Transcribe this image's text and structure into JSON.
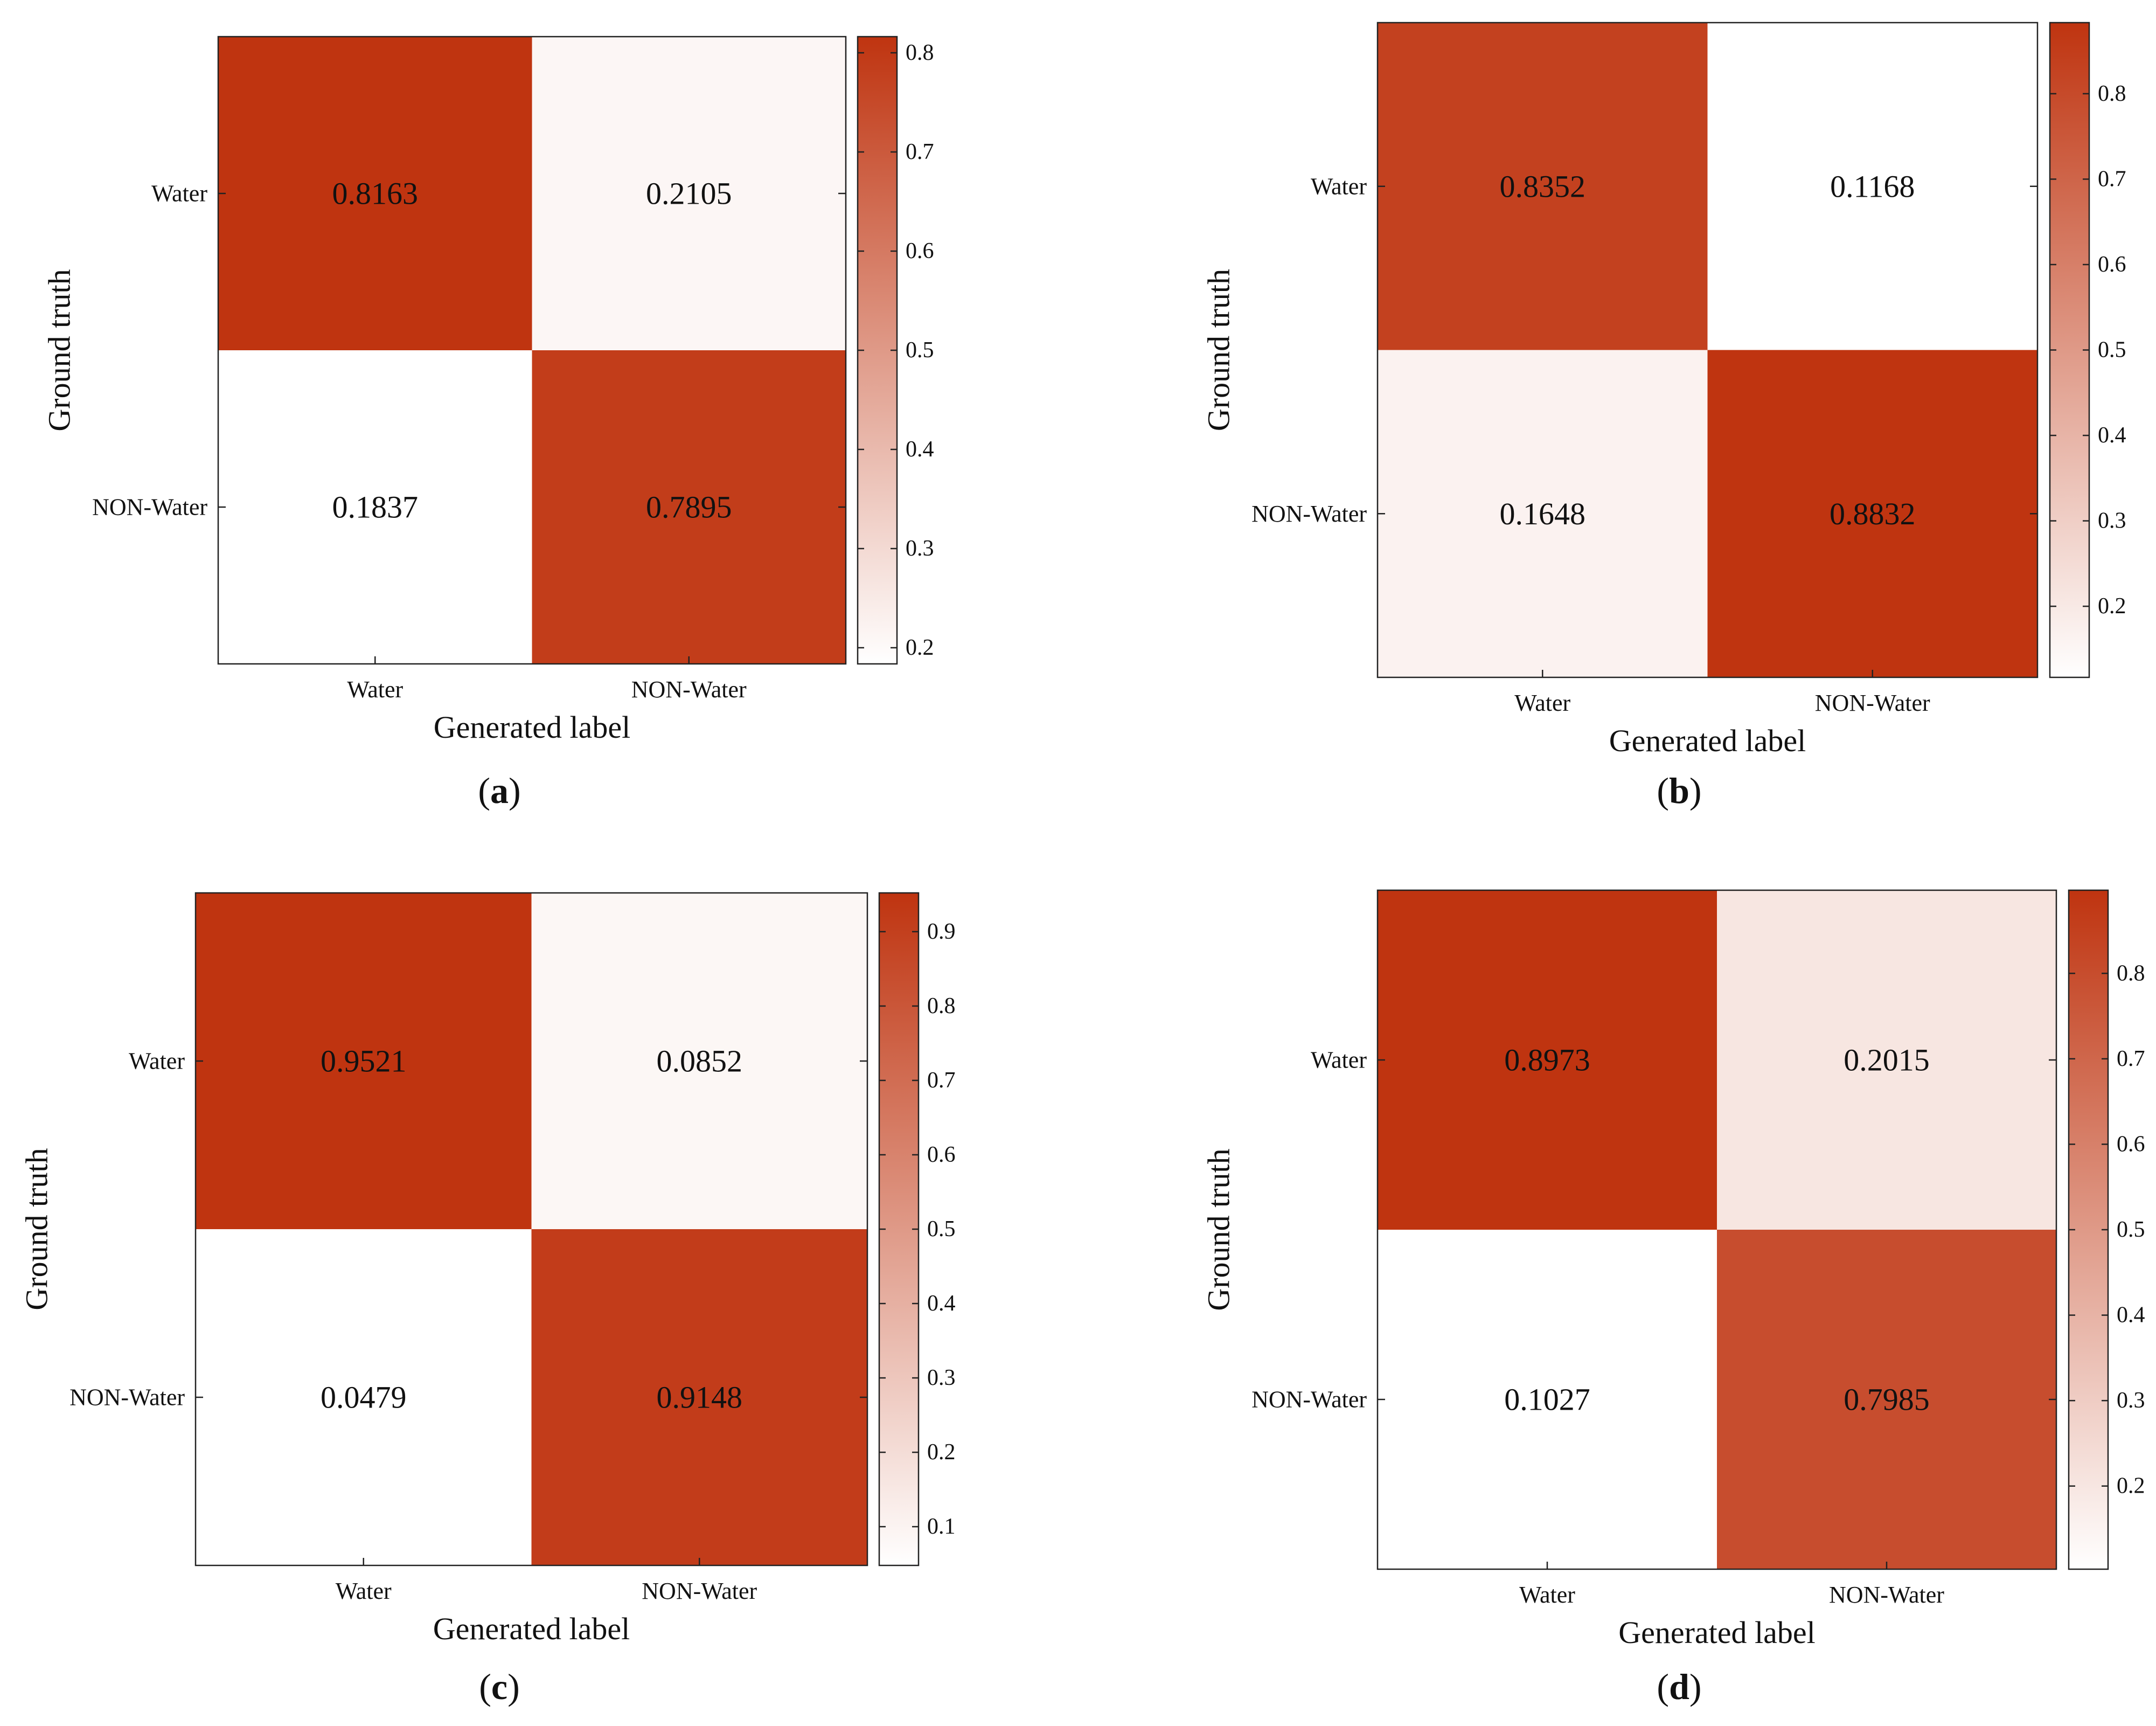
{
  "colors": {
    "low": "#ffffff",
    "high": "#bf3410",
    "text": "#111111",
    "frame": "#222222"
  },
  "chart_data": [
    {
      "panel_label": "(a)",
      "panel_letter": "a",
      "type": "heatmap",
      "title": "",
      "xlabel": "Generated label",
      "ylabel": "Ground truth",
      "x_categories": [
        "Water",
        "NON-Water"
      ],
      "y_categories": [
        "Water",
        "NON-Water"
      ],
      "values": [
        [
          0.8163,
          0.2105
        ],
        [
          0.1837,
          0.7895
        ]
      ],
      "colorbar": {
        "range": [
          0.1837,
          0.8163
        ],
        "ticks": [
          "0.2",
          "0.3",
          "0.4",
          "0.5",
          "0.6",
          "0.7",
          "0.8"
        ]
      }
    },
    {
      "panel_label": "(b)",
      "panel_letter": "b",
      "type": "heatmap",
      "title": "",
      "xlabel": "Generated label",
      "ylabel": "Ground truth",
      "x_categories": [
        "Water",
        "NON-Water"
      ],
      "y_categories": [
        "Water",
        "NON-Water"
      ],
      "values": [
        [
          0.8352,
          0.1168
        ],
        [
          0.1648,
          0.8832
        ]
      ],
      "colorbar": {
        "range": [
          0.1168,
          0.8832
        ],
        "ticks": [
          "0.2",
          "0.3",
          "0.4",
          "0.5",
          "0.6",
          "0.7",
          "0.8"
        ]
      }
    },
    {
      "panel_label": "(c)",
      "panel_letter": "c",
      "type": "heatmap",
      "title": "",
      "xlabel": "Generated label",
      "ylabel": "Ground truth",
      "x_categories": [
        "Water",
        "NON-Water"
      ],
      "y_categories": [
        "Water",
        "NON-Water"
      ],
      "values": [
        [
          0.9521,
          0.0852
        ],
        [
          0.0479,
          0.9148
        ]
      ],
      "colorbar": {
        "range": [
          0.0479,
          0.9521
        ],
        "ticks": [
          "0.1",
          "0.2",
          "0.3",
          "0.4",
          "0.5",
          "0.6",
          "0.7",
          "0.8",
          "0.9"
        ]
      }
    },
    {
      "panel_label": "(d)",
      "panel_letter": "d",
      "type": "heatmap",
      "title": "",
      "xlabel": "Generated label",
      "ylabel": "Ground truth",
      "x_categories": [
        "Water",
        "NON-Water"
      ],
      "y_categories": [
        "Water",
        "NON-Water"
      ],
      "values": [
        [
          0.8973,
          0.2015
        ],
        [
          0.1027,
          0.7985
        ]
      ],
      "colorbar": {
        "range": [
          0.1027,
          0.8973
        ],
        "ticks": [
          "0.2",
          "0.3",
          "0.4",
          "0.5",
          "0.6",
          "0.7",
          "0.8"
        ]
      }
    }
  ]
}
